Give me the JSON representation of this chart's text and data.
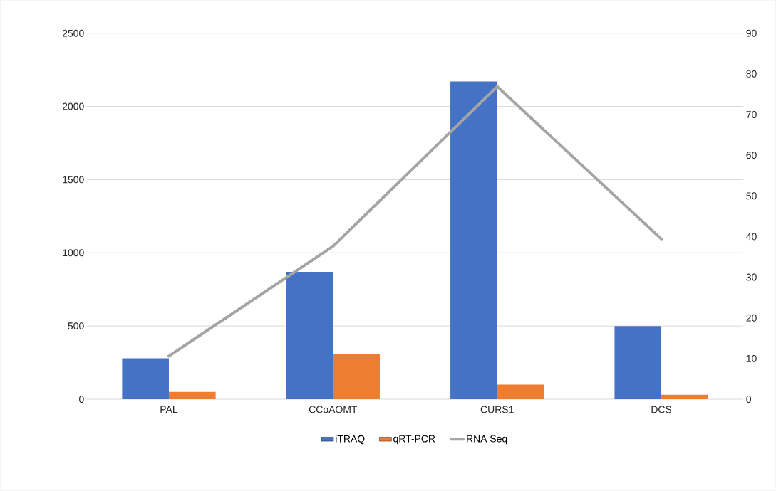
{
  "chart_data": {
    "type": "bar",
    "categories": [
      "PAL",
      "CCoAOMT",
      "CURS1",
      "DCS"
    ],
    "series": [
      {
        "name": "iTRAQ",
        "color": "#4472c4",
        "values": [
          280,
          870,
          2170,
          500
        ]
      },
      {
        "name": "qRT-PCR",
        "color": "#ed7d31",
        "values": [
          50,
          310,
          100,
          30
        ]
      },
      {
        "name": "RNA Seq",
        "type": "line",
        "axis": "y2",
        "color": "#a5a5a5",
        "values": [
          10.6,
          37.6,
          76.9,
          39.4
        ]
      }
    ],
    "ylim": [
      0,
      2500
    ],
    "yticks": [
      0,
      500,
      1000,
      1500,
      2000,
      2500
    ],
    "y2lim": [
      0,
      90
    ],
    "y2ticks": [
      0,
      10,
      20,
      30,
      40,
      50,
      60,
      70,
      80,
      90
    ],
    "grid": "y",
    "legend": "bottom",
    "marker": "none",
    "line_style": "solid"
  }
}
